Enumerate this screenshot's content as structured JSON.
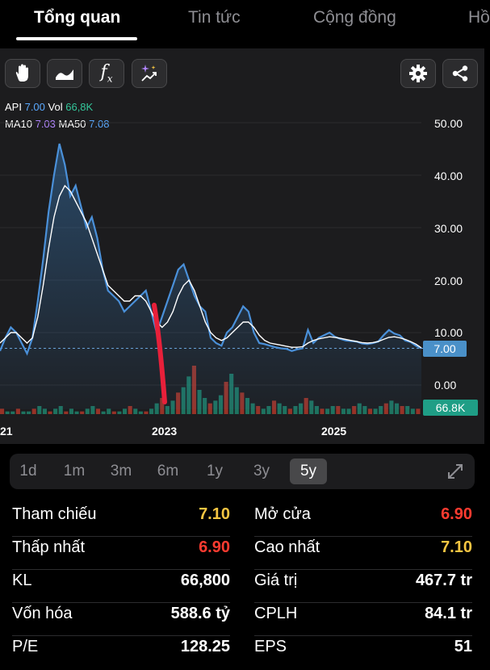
{
  "tabs": [
    {
      "label": "Tổng quan",
      "active": true
    },
    {
      "label": "Tin tức",
      "active": false
    },
    {
      "label": "Cộng đồng",
      "active": false
    },
    {
      "label": "Hồ",
      "active": false
    }
  ],
  "toolbar": {
    "icons": [
      "hand-icon",
      "area-chart-icon",
      "function-icon",
      "ai-sparkle-icon",
      "settings-icon",
      "share-icon"
    ],
    "fx_text": "f",
    "fx_sub": "x"
  },
  "legend": {
    "api_label": "API",
    "api_value": "7.00",
    "vol_label": "Vol",
    "vol_value": "66,8K",
    "ma10_label": "MA10",
    "ma10_value": "7.03",
    "ma50_label": "MA50",
    "ma50_value": "7.08"
  },
  "chart_data": {
    "type": "area",
    "y_ticks": [
      "50.00",
      "40.00",
      "30.00",
      "20.00",
      "10.00",
      "0.00"
    ],
    "x_ticks": [
      "21",
      "2023",
      "2025"
    ],
    "ylim": [
      0,
      50
    ],
    "current_price": "7.00",
    "current_volume": "66.8K",
    "series": [
      {
        "name": "API",
        "color": "#4a90d9",
        "values": [
          6.5,
          9,
          11,
          10,
          8,
          6,
          9,
          16,
          24,
          33,
          40,
          46,
          42,
          36,
          38,
          34,
          30,
          32,
          28,
          22,
          18,
          17,
          16,
          14,
          15,
          16,
          17,
          18,
          14,
          10,
          13,
          16,
          19,
          22,
          23,
          20,
          17,
          15,
          14,
          9,
          8,
          7.5,
          10,
          11,
          13,
          15,
          14,
          10,
          8,
          7.8,
          7.5,
          7.2,
          7.0,
          6.9,
          6.5,
          6.8,
          7,
          10.5,
          8,
          9,
          9.5,
          10,
          9.2,
          8.8,
          8.5,
          8.4,
          8.3,
          7.9,
          7.8,
          8,
          8.3,
          9.5,
          10.5,
          9.8,
          9.5,
          8.5,
          8.2,
          7.5,
          7.0
        ]
      },
      {
        "name": "MA",
        "color": "#ffffff",
        "values": [
          8,
          9,
          10,
          10,
          9,
          8,
          9,
          13,
          19,
          26,
          32,
          36,
          38,
          37,
          35,
          33,
          31,
          28,
          25,
          22,
          19,
          18,
          17,
          16,
          16,
          17,
          17,
          16,
          14,
          12,
          11,
          12,
          14,
          17,
          19,
          20,
          18,
          15,
          12,
          10,
          9,
          8.5,
          9,
          10,
          11,
          12,
          12,
          11,
          9.5,
          8.5,
          8,
          7.8,
          7.6,
          7.4,
          7.2,
          7.2,
          7.3,
          8,
          8.5,
          8.8,
          9,
          9.2,
          9.1,
          8.9,
          8.7,
          8.5,
          8.3,
          8.1,
          8,
          8.1,
          8.3,
          8.7,
          9.1,
          9.2,
          9,
          8.7,
          8.3,
          7.8,
          7.1
        ]
      }
    ],
    "volume": [
      2,
      1,
      1,
      2,
      1,
      1,
      2,
      3,
      2,
      1,
      2,
      3,
      1,
      2,
      1,
      1,
      2,
      3,
      2,
      1,
      2,
      1,
      1,
      2,
      3,
      2,
      1,
      1,
      2,
      4,
      6,
      3,
      5,
      8,
      10,
      14,
      18,
      9,
      6,
      4,
      5,
      7,
      12,
      15,
      10,
      8,
      6,
      4,
      3,
      2,
      3,
      5,
      4,
      3,
      2,
      3,
      4,
      6,
      5,
      3,
      2,
      2,
      3,
      3,
      2,
      2,
      3,
      4,
      3,
      2,
      2,
      3,
      4,
      5,
      4,
      3,
      3,
      2,
      2
    ]
  },
  "periods": [
    {
      "label": "1d",
      "active": false
    },
    {
      "label": "1m",
      "active": false
    },
    {
      "label": "3m",
      "active": false
    },
    {
      "label": "6m",
      "active": false
    },
    {
      "label": "1y",
      "active": false
    },
    {
      "label": "3y",
      "active": false
    },
    {
      "label": "5y",
      "active": true
    }
  ],
  "stats": [
    {
      "label": "Tham chiếu",
      "value": "7.10",
      "color": "#f5c542"
    },
    {
      "label": "Mở cửa",
      "value": "6.90",
      "color": "#ff3b30"
    },
    {
      "label": "Thấp nhất",
      "value": "6.90",
      "color": "#ff3b30"
    },
    {
      "label": "Cao nhất",
      "value": "7.10",
      "color": "#f5c542"
    },
    {
      "label": "KL",
      "value": "66,800",
      "color": "#ffffff"
    },
    {
      "label": "Giá trị",
      "value": "467.7 tr",
      "color": "#ffffff"
    },
    {
      "label": "Vốn hóa",
      "value": "588.6 tỷ",
      "color": "#ffffff"
    },
    {
      "label": "CPLH",
      "value": "84.1 tr",
      "color": "#ffffff"
    },
    {
      "label": "P/E",
      "value": "128.25",
      "color": "#ffffff"
    },
    {
      "label": "EPS",
      "value": "51",
      "color": "#ffffff"
    }
  ]
}
